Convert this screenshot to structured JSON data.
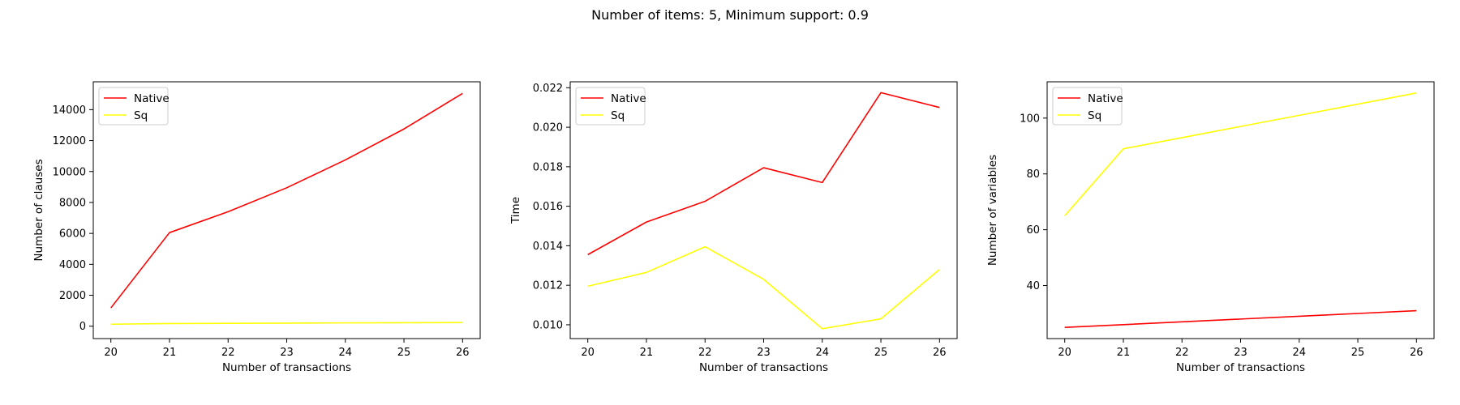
{
  "figure": {
    "title": "Number of items: 5, Minimum support: 0.9"
  },
  "chart_data": [
    {
      "type": "line",
      "xlabel": "Number of transactions",
      "ylabel": "Number of clauses",
      "x": [
        20,
        21,
        22,
        23,
        24,
        25,
        26
      ],
      "xlim": [
        19.7,
        26.3
      ],
      "ylim": [
        -800,
        15800
      ],
      "xticks": [
        20,
        21,
        22,
        23,
        24,
        25,
        26
      ],
      "yticks": [
        0,
        2000,
        4000,
        6000,
        8000,
        10000,
        12000,
        14000
      ],
      "legend": "upper left",
      "grid": false,
      "series": [
        {
          "name": "Native",
          "color": "#ff0000",
          "values": [
            1180,
            6050,
            7400,
            8950,
            10750,
            12750,
            15050
          ]
        },
        {
          "name": "Sq",
          "color": "#ffff00",
          "values": [
            130,
            170,
            185,
            200,
            215,
            225,
            240
          ]
        }
      ]
    },
    {
      "type": "line",
      "xlabel": "Number of transactions",
      "ylabel": "Time",
      "x": [
        20,
        21,
        22,
        23,
        24,
        25,
        26
      ],
      "xlim": [
        19.7,
        26.3
      ],
      "ylim": [
        0.0093,
        0.0223
      ],
      "xticks": [
        20,
        21,
        22,
        23,
        24,
        25,
        26
      ],
      "yticks": [
        0.01,
        0.012,
        0.014,
        0.016,
        0.018,
        0.02,
        0.022
      ],
      "ytick_labels": [
        "0.010",
        "0.012",
        "0.014",
        "0.016",
        "0.018",
        "0.020",
        "0.022"
      ],
      "legend": "upper left",
      "grid": false,
      "series": [
        {
          "name": "Native",
          "color": "#ff0000",
          "values": [
            0.01355,
            0.0152,
            0.01625,
            0.01795,
            0.0172,
            0.02175,
            0.021
          ]
        },
        {
          "name": "Sq",
          "color": "#ffff00",
          "values": [
            0.01195,
            0.01265,
            0.01395,
            0.0123,
            0.0098,
            0.0103,
            0.0128
          ]
        }
      ]
    },
    {
      "type": "line",
      "xlabel": "Number of transactions",
      "ylabel": "Number of variables",
      "x": [
        20,
        21,
        22,
        23,
        24,
        25,
        26
      ],
      "xlim": [
        19.7,
        26.3
      ],
      "ylim": [
        21,
        113
      ],
      "xticks": [
        20,
        21,
        22,
        23,
        24,
        25,
        26
      ],
      "yticks": [
        40,
        60,
        80,
        100
      ],
      "legend": "upper left",
      "grid": false,
      "series": [
        {
          "name": "Native",
          "color": "#ff0000",
          "values": [
            25,
            26,
            27,
            28,
            29,
            30,
            31
          ]
        },
        {
          "name": "Sq",
          "color": "#ffff00",
          "values": [
            65,
            89,
            93,
            97,
            101,
            105,
            109
          ]
        }
      ]
    }
  ]
}
